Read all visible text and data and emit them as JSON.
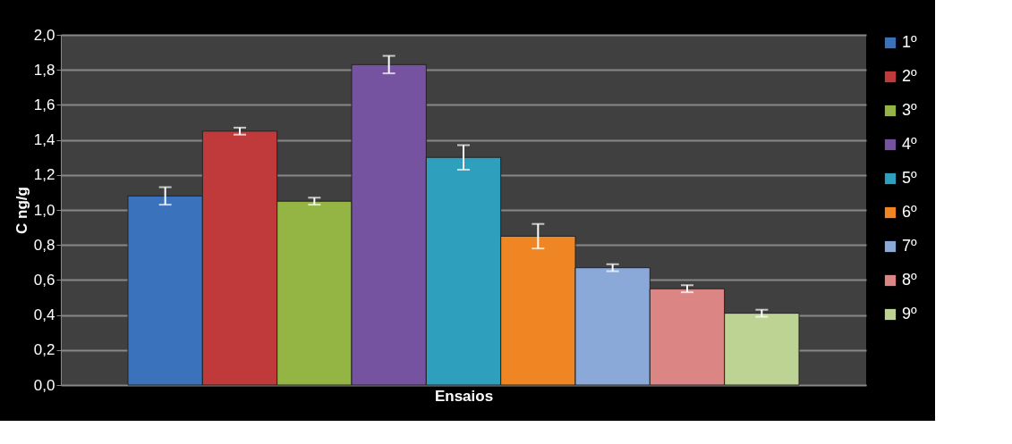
{
  "chart_data": {
    "type": "bar",
    "xlabel": "Ensaios",
    "ylabel": "C ng/g",
    "categories": [
      null
    ],
    "series": [
      {
        "name": "1º",
        "color": "#3a72bb",
        "values": [
          1.08
        ],
        "errors": [
          0.05
        ]
      },
      {
        "name": "2º",
        "color": "#c0393b",
        "values": [
          1.45
        ],
        "errors": [
          0.02
        ]
      },
      {
        "name": "3º",
        "color": "#94b544",
        "values": [
          1.05
        ],
        "errors": [
          0.02
        ]
      },
      {
        "name": "4º",
        "color": "#7553a0",
        "values": [
          1.83
        ],
        "errors": [
          0.05
        ]
      },
      {
        "name": "5º",
        "color": "#2e9fbd",
        "values": [
          1.3
        ],
        "errors": [
          0.07
        ]
      },
      {
        "name": "6º",
        "color": "#f08523",
        "values": [
          0.85
        ],
        "errors": [
          0.07
        ]
      },
      {
        "name": "7º",
        "color": "#8aa8d8",
        "values": [
          0.67
        ],
        "errors": [
          0.02
        ]
      },
      {
        "name": "8º",
        "color": "#db8585",
        "values": [
          0.55
        ],
        "errors": [
          0.02
        ]
      },
      {
        "name": "9º",
        "color": "#bdd394",
        "values": [
          0.41
        ],
        "errors": [
          0.02
        ]
      }
    ],
    "ylim": [
      0,
      2.0
    ],
    "yticks": [
      {
        "value": 0,
        "label": "0,0"
      },
      {
        "value": 0.2,
        "label": "0,2"
      },
      {
        "value": 0.4,
        "label": "0,4"
      },
      {
        "value": 0.6,
        "label": "0,6"
      },
      {
        "value": 0.8,
        "label": "0,8"
      },
      {
        "value": 1.0,
        "label": "1,0"
      },
      {
        "value": 1.2,
        "label": "1,2"
      },
      {
        "value": 1.4,
        "label": "1,4"
      },
      {
        "value": 1.6,
        "label": "1,6"
      },
      {
        "value": 1.8,
        "label": "1,8"
      },
      {
        "value": 2.0,
        "label": "2,0"
      }
    ],
    "grid": "y",
    "legend": "right",
    "tick_labels": "y"
  }
}
